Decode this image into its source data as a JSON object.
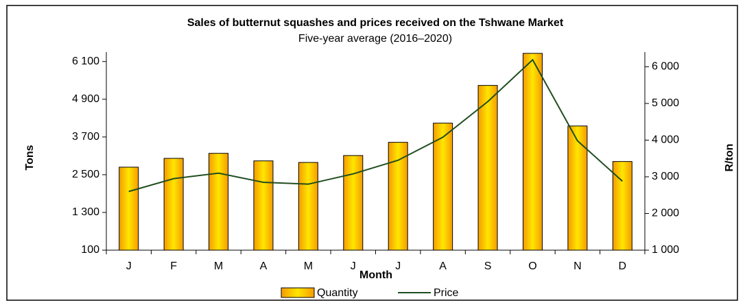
{
  "chart_data": {
    "type": "bar_line",
    "title": "Sales of butternut squashes and prices received on the Tshwane Market",
    "subtitle": "Five-year average (2016–2020)",
    "x_label": "Month",
    "y_label": "Tons",
    "y2_label": "R/ton",
    "categories": [
      "J",
      "F",
      "M",
      "A",
      "M",
      "J",
      "J",
      "A",
      "S",
      "O",
      "N",
      "D"
    ],
    "series": [
      {
        "name": "Quantity",
        "type": "bar",
        "color": "#f5a800",
        "values": [
          2740,
          3020,
          3180,
          2940,
          2890,
          3110,
          3530,
          4140,
          5340,
          6360,
          4050,
          2920
        ]
      },
      {
        "name": "Price",
        "type": "line",
        "axis": "y2",
        "color": "#1f4d1f",
        "values": [
          2600,
          2950,
          3100,
          2850,
          2800,
          3080,
          3450,
          4080,
          5050,
          6190,
          3980,
          2880
        ]
      }
    ],
    "ylim": [
      100,
      6400
    ],
    "yticks": [
      100,
      {
        "value": 1300,
        "label": "1 300"
      },
      {
        "value": 2500,
        "label": "2 500"
      },
      {
        "value": 3700,
        "label": "3 700"
      },
      {
        "value": 4900,
        "label": "4 900"
      },
      {
        "value": 6100,
        "label": "6 100"
      }
    ],
    "y2lim": [
      1000,
      6400
    ],
    "y2ticks": [
      {
        "value": 1000,
        "label": "1 000"
      },
      {
        "value": 2000,
        "label": "2 000"
      },
      {
        "value": 3000,
        "label": "3 000"
      },
      {
        "value": 4000,
        "label": "4 000"
      },
      {
        "value": 5000,
        "label": "5 000"
      },
      {
        "value": 6000,
        "label": "6 000"
      }
    ]
  }
}
